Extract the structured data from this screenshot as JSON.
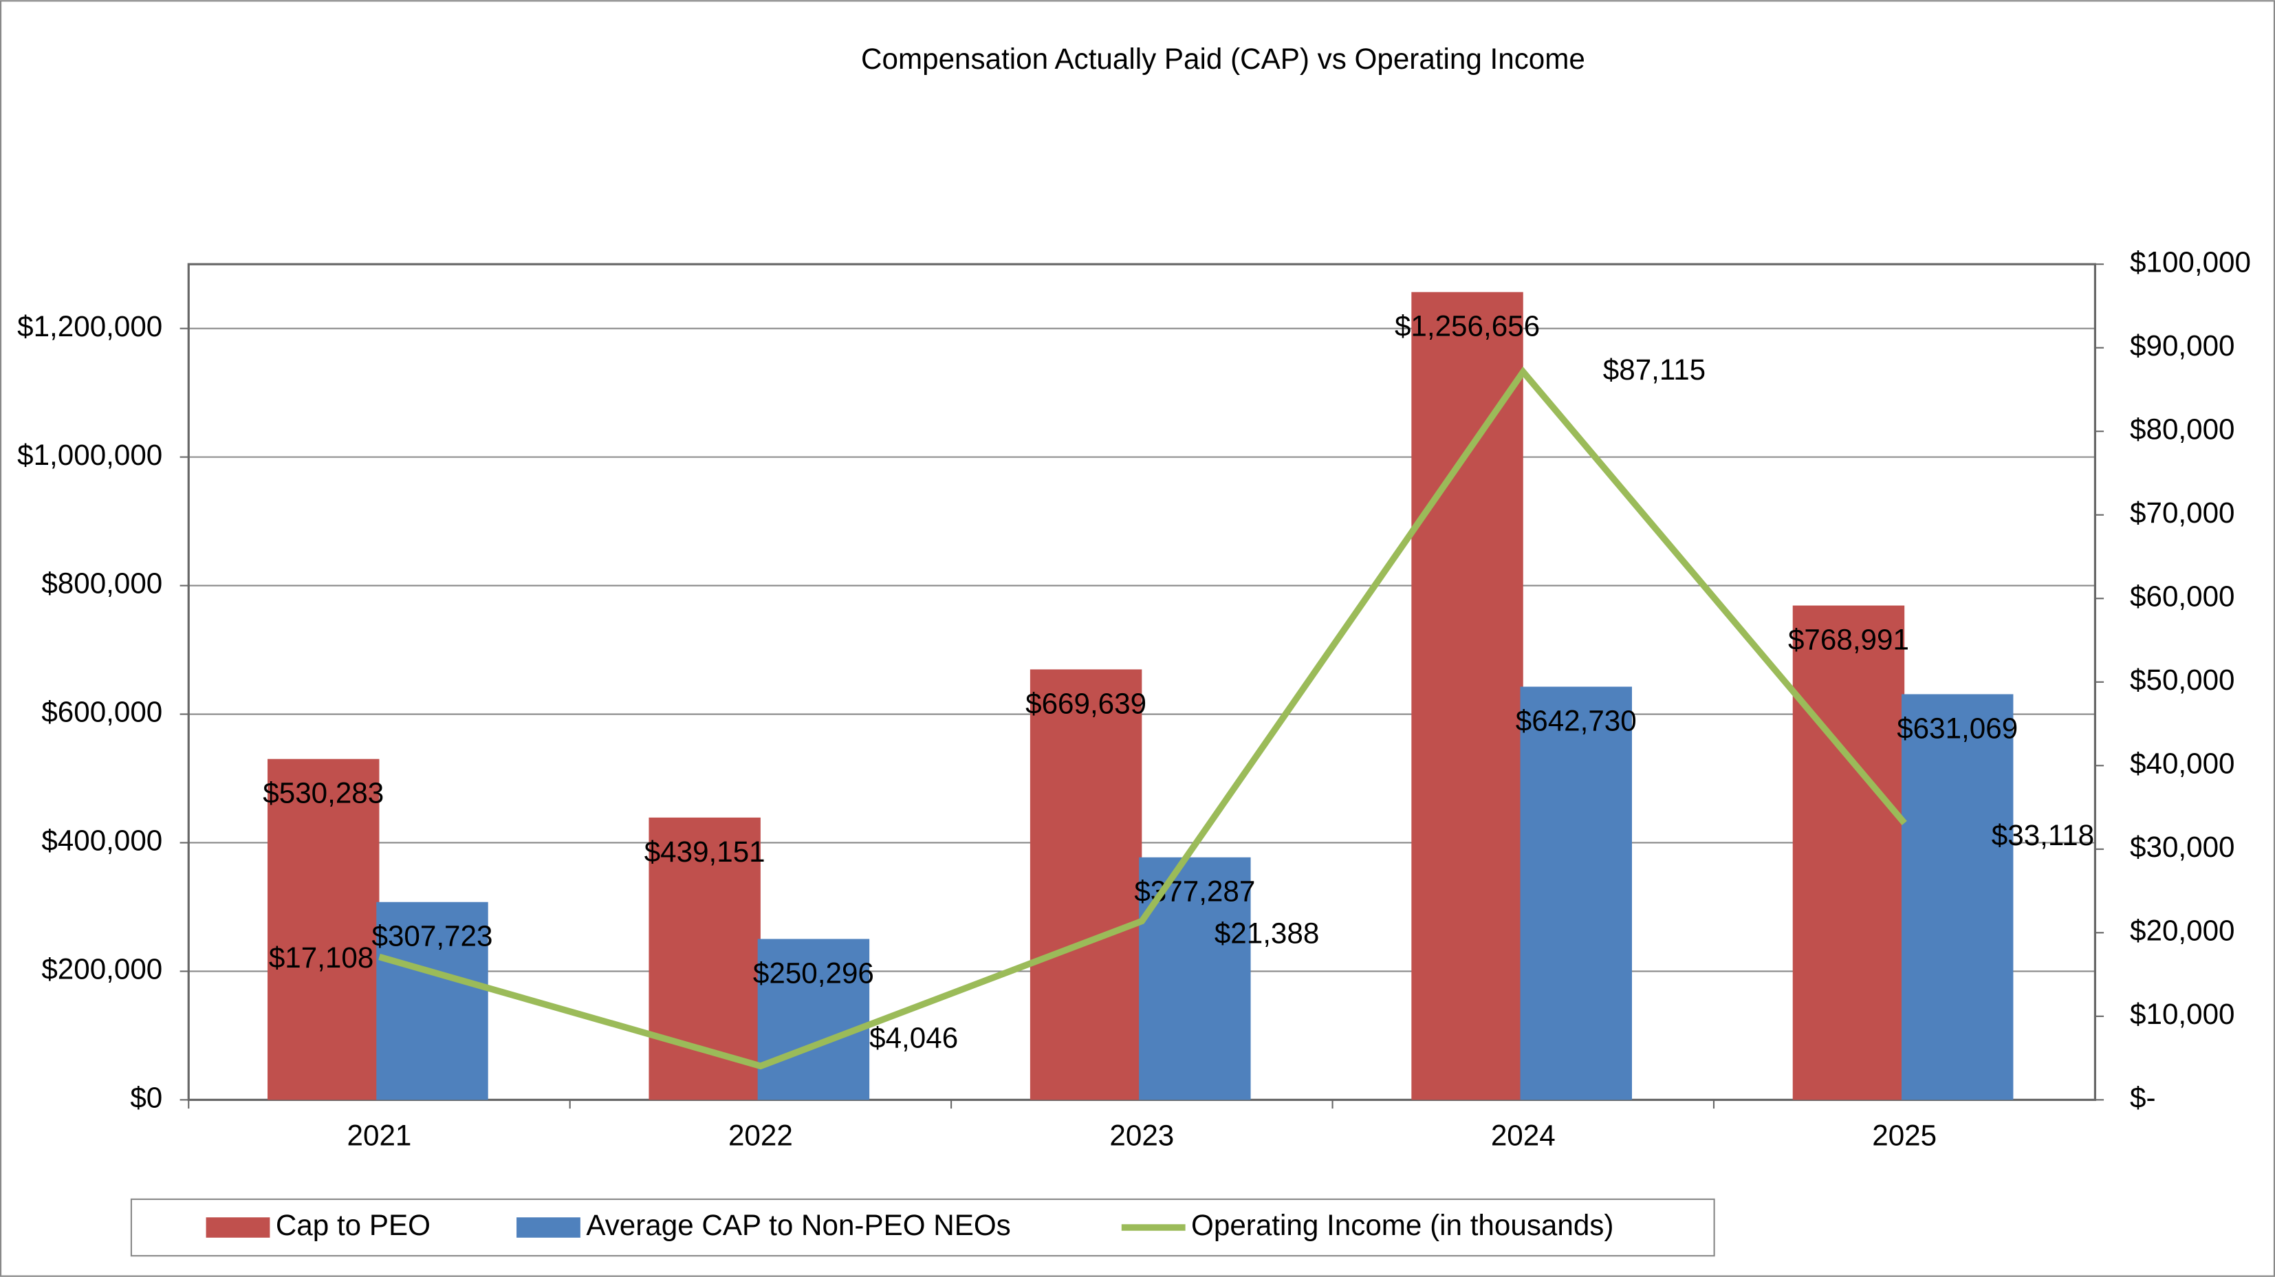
{
  "chart_data": {
    "type": "bar",
    "title": "Compensation Actually Paid (CAP) vs Operating Income",
    "categories": [
      "2021",
      "2022",
      "2023",
      "2024",
      "2025"
    ],
    "series": [
      {
        "name": "Cap to PEO",
        "color": "#c0504d",
        "values": [
          530283,
          439151,
          669639,
          1256656,
          768991
        ],
        "value_labels": [
          "$530,283",
          "$439,151",
          "$669,639",
          "$1,256,656",
          "$768,991"
        ]
      },
      {
        "name": "Average CAP to Non-PEO NEOs",
        "color": "#4f81bd",
        "values": [
          307723,
          250296,
          377287,
          642730,
          631069
        ],
        "value_labels": [
          "$307,723",
          "$250,296",
          "$377,287",
          "$642,730",
          "$631,069"
        ]
      },
      {
        "name": "Operating Income (in thousands)",
        "type": "line",
        "axis": "y2",
        "color": "#9bbb59",
        "values": [
          17108,
          4046,
          21388,
          87115,
          33118
        ],
        "value_labels": [
          "$17,108",
          "$4,046",
          "$21,388",
          "$87,115",
          "$33,118"
        ]
      }
    ],
    "ylim": [
      0,
      1300000
    ],
    "yticks": [
      {
        "value": 0,
        "label": "$0"
      },
      {
        "value": 200000,
        "label": "$200,000"
      },
      {
        "value": 400000,
        "label": "$400,000"
      },
      {
        "value": 600000,
        "label": "$600,000"
      },
      {
        "value": 800000,
        "label": "$800,000"
      },
      {
        "value": 1000000,
        "label": "$1,000,000"
      },
      {
        "value": 1200000,
        "label": "$1,200,000"
      }
    ],
    "y2lim": [
      0,
      100000
    ],
    "y2ticks": [
      {
        "value": 0,
        "label": "$-"
      },
      {
        "value": 10000,
        "label": "$10,000"
      },
      {
        "value": 20000,
        "label": "$20,000"
      },
      {
        "value": 30000,
        "label": "$30,000"
      },
      {
        "value": 40000,
        "label": "$40,000"
      },
      {
        "value": 50000,
        "label": "$50,000"
      },
      {
        "value": 60000,
        "label": "$60,000"
      },
      {
        "value": 70000,
        "label": "$70,000"
      },
      {
        "value": 80000,
        "label": "$80,000"
      },
      {
        "value": 90000,
        "label": "$90,000"
      },
      {
        "value": 100000,
        "label": "$100,000"
      }
    ],
    "grid": true,
    "legend": "bottom"
  }
}
